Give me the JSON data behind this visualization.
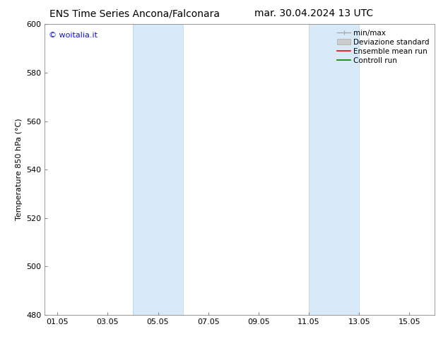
{
  "title_left": "ENS Time Series Ancona/Falconara",
  "title_right": "mar. 30.04.2024 13 UTC",
  "ylabel": "Temperature 850 hPa (°C)",
  "ylim": [
    480,
    600
  ],
  "yticks": [
    480,
    500,
    520,
    540,
    560,
    580,
    600
  ],
  "xtick_labels": [
    "01.05",
    "03.05",
    "05.05",
    "07.05",
    "09.05",
    "11.05",
    "13.05",
    "15.05"
  ],
  "xtick_positions": [
    1,
    3,
    5,
    7,
    9,
    11,
    13,
    15
  ],
  "xlim": [
    0.5,
    16.0
  ],
  "shaded_bands": [
    {
      "xmin": 4.0,
      "xmax": 6.0
    },
    {
      "xmin": 11.0,
      "xmax": 13.0
    }
  ],
  "band_color": "#d8eaf7",
  "band_edge_color": "#b0cfe8",
  "watermark_text": "© woitalia.it",
  "watermark_color": "#1515cc",
  "legend_labels": [
    "min/max",
    "Deviazione standard",
    "Ensemble mean run",
    "Controll run"
  ],
  "minmax_color": "#aaaaaa",
  "devstd_color": "#cccccc",
  "ensemble_color": "#ff0000",
  "control_color": "#008000",
  "background_color": "#ffffff",
  "title_fontsize": 10,
  "label_fontsize": 8,
  "tick_fontsize": 8,
  "legend_fontsize": 7.5,
  "watermark_fontsize": 8
}
